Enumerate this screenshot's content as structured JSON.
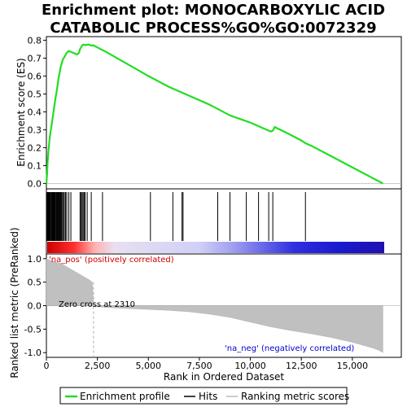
{
  "chart_data": {
    "type": "line",
    "title_line1": "Enrichment plot: MONOCARBOXYLIC ACID",
    "title_line2": "CATABOLIC PROCESS%GO%GO:0072329",
    "xlabel": "Rank in Ordered Dataset",
    "es_ylabel": "Enrichment score (ES)",
    "metric_ylabel": "Ranked list metric (PreRanked)",
    "annotation_pos": "'na_pos' (positively correlated)",
    "annotation_neg": "'na_neg' (negatively correlated)",
    "annotation_zero": "Zero cross at 2310",
    "legend": [
      "Enrichment profile",
      "Hits",
      "Ranking metric scores"
    ],
    "xlim": [
      0,
      17400
    ],
    "x_ticks": [
      0,
      2500,
      5000,
      7500,
      10000,
      12500,
      15000
    ],
    "x_tick_labels": [
      "0",
      "2,500",
      "5,000",
      "7,500",
      "10,000",
      "12,500",
      "15,000"
    ],
    "es_ylim": [
      -0.03,
      0.82
    ],
    "es_ticks": [
      0.0,
      0.1,
      0.2,
      0.3,
      0.4,
      0.5,
      0.6,
      0.7,
      0.8
    ],
    "es_tick_labels": [
      "0.0",
      "0.1",
      "0.2",
      "0.3",
      "0.4",
      "0.5",
      "0.6",
      "0.7",
      "0.8"
    ],
    "metric_ylim": [
      -1.1,
      1.1
    ],
    "metric_ticks": [
      1.0,
      0.5,
      0.0,
      -0.5,
      -1.0
    ],
    "metric_tick_labels": [
      "1.0",
      "0.5",
      "0.0",
      "-0.5",
      "-1.0"
    ],
    "zero_cross": 2310,
    "n_genes": 16500,
    "enrichment_profile": {
      "x": [
        0,
        30,
        60,
        100,
        140,
        180,
        220,
        260,
        300,
        350,
        400,
        450,
        500,
        550,
        600,
        650,
        700,
        750,
        800,
        850,
        900,
        950,
        1000,
        1100,
        1200,
        1300,
        1400,
        1500,
        1600,
        1650,
        1700,
        1750,
        1800,
        1850,
        1900,
        2000,
        2100,
        2200,
        2300,
        2500,
        3000,
        4000,
        5000,
        6000,
        7000,
        8000,
        8500,
        9000,
        9500,
        10000,
        10400,
        10600,
        10800,
        11000,
        11100,
        11200,
        12000,
        12500,
        12700,
        13000,
        14000,
        15000,
        16000,
        16500
      ],
      "es": [
        0.0,
        0.05,
        0.12,
        0.18,
        0.23,
        0.27,
        0.3,
        0.33,
        0.36,
        0.4,
        0.44,
        0.48,
        0.51,
        0.55,
        0.59,
        0.62,
        0.65,
        0.67,
        0.69,
        0.7,
        0.71,
        0.72,
        0.73,
        0.74,
        0.735,
        0.73,
        0.725,
        0.72,
        0.73,
        0.75,
        0.76,
        0.77,
        0.775,
        0.775,
        0.772,
        0.775,
        0.775,
        0.77,
        0.772,
        0.76,
        0.73,
        0.665,
        0.6,
        0.54,
        0.49,
        0.44,
        0.41,
        0.38,
        0.36,
        0.34,
        0.32,
        0.31,
        0.3,
        0.29,
        0.295,
        0.315,
        0.27,
        0.24,
        0.225,
        0.21,
        0.15,
        0.09,
        0.03,
        0.0
      ]
    },
    "hits": [
      10,
      40,
      80,
      120,
      160,
      190,
      230,
      260,
      300,
      340,
      370,
      400,
      430,
      470,
      500,
      540,
      580,
      620,
      660,
      700,
      740,
      790,
      830,
      880,
      940,
      1000,
      1100,
      1200,
      1650,
      1700,
      1750,
      1800,
      1850,
      1900,
      2000,
      2200,
      2750,
      5100,
      6200,
      6650,
      6700,
      8400,
      9000,
      9800,
      10400,
      10900,
      11100,
      12700
    ],
    "ranked_metric": {
      "x": [
        0,
        50,
        100,
        200,
        300,
        400,
        500,
        700,
        900,
        1100,
        1300,
        1500,
        1700,
        1900,
        2100,
        2250,
        2310,
        2500,
        3000,
        4000,
        5000,
        6000,
        7000,
        8000,
        9000,
        10000,
        11000,
        12000,
        13000,
        14000,
        15000,
        15500,
        16000,
        16300,
        16500
      ],
      "values": [
        1.0,
        0.99,
        0.98,
        0.96,
        0.95,
        0.93,
        0.92,
        0.9,
        0.85,
        0.8,
        0.75,
        0.7,
        0.65,
        0.6,
        0.55,
        0.5,
        0.0,
        -0.02,
        -0.04,
        -0.06,
        -0.08,
        -0.1,
        -0.13,
        -0.18,
        -0.25,
        -0.35,
        -0.45,
        -0.53,
        -0.6,
        -0.68,
        -0.78,
        -0.84,
        -0.9,
        -0.95,
        -1.0
      ]
    }
  }
}
